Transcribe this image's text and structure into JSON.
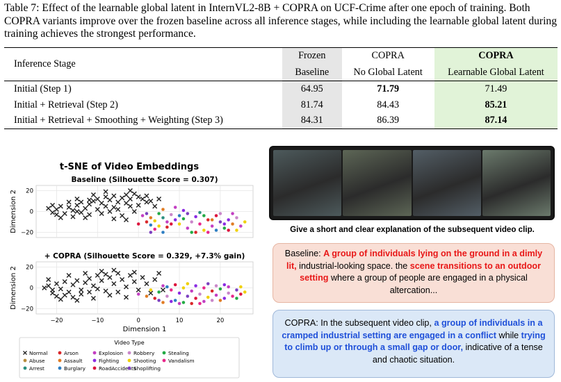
{
  "caption": "Table 7: Effect of the learnable global latent in InternVL2-8B + COPRA on UCF-Crime after one epoch of training. Both COPRA variants improve over the frozen baseline across all inference stages, while including the learnable global latent during training achieves the strongest performance.",
  "table": {
    "stage_header": "Inference Stage",
    "col1_line1": "Frozen",
    "col1_line2": "Baseline",
    "col2_line1": "COPRA",
    "col2_line2": "No Global Latent",
    "col3_line1": "COPRA",
    "col3_line2": "Learnable Global Latent",
    "rows": [
      {
        "stage": "Initial (Step 1)",
        "v1": "64.95",
        "v2": "71.79",
        "v3": "71.49",
        "best": 2
      },
      {
        "stage": "Initial + Retrieval (Step 2)",
        "v1": "81.74",
        "v2": "84.43",
        "v3": "85.21",
        "best": 3
      },
      {
        "stage": "Initial + Retrieval + Smoothing + Weighting (Step 3)",
        "v1": "84.31",
        "v2": "86.39",
        "v3": "87.14",
        "best": 3
      }
    ]
  },
  "chart_data": {
    "type": "scatter",
    "title": "t-SNE of Video Embeddings",
    "xlabel": "Dimension 1",
    "ylabel": "Dimension 2",
    "xlim": [
      -25,
      28
    ],
    "xticks": [
      -20,
      -10,
      0,
      10,
      20
    ],
    "yticks": [
      -20,
      0,
      20
    ],
    "grid": true,
    "legend_title": "Video Type",
    "legend_position": "bottom",
    "categories": [
      {
        "name": "Normal",
        "color": "#222222",
        "marker": "x"
      },
      {
        "name": "Abuse",
        "color": "#b68b3c"
      },
      {
        "name": "Arrest",
        "color": "#2a8f7f"
      },
      {
        "name": "Arson",
        "color": "#d9262a"
      },
      {
        "name": "Assault",
        "color": "#e07b22"
      },
      {
        "name": "Burglary",
        "color": "#2c7dc2"
      },
      {
        "name": "Explosion",
        "color": "#c23ec2"
      },
      {
        "name": "Fighting",
        "color": "#8a2be2"
      },
      {
        "name": "RoadAccidents",
        "color": "#dc143c"
      },
      {
        "name": "Robbery",
        "color": "#c986c9"
      },
      {
        "name": "Shooting",
        "color": "#f0d000"
      },
      {
        "name": "Shoplifting",
        "color": "#7b3fbf"
      },
      {
        "name": "Stealing",
        "color": "#22aa44"
      },
      {
        "name": "Vandalism",
        "color": "#e8268a"
      }
    ],
    "panels": [
      {
        "subtitle": "Baseline (Silhouette Score = 0.307)",
        "ylim": [
          -25,
          25
        ],
        "points": [
          [
            -20,
            2,
            0
          ],
          [
            -21,
            -1,
            0
          ],
          [
            -19,
            5,
            0
          ],
          [
            -18,
            -2,
            0
          ],
          [
            -22,
            3,
            0
          ],
          [
            -17,
            4,
            0
          ],
          [
            -20,
            -3,
            0
          ],
          [
            -16,
            1,
            0
          ],
          [
            -15,
            6,
            0
          ],
          [
            -14,
            -1,
            0
          ],
          [
            -13,
            3,
            0
          ],
          [
            -12,
            7,
            0
          ],
          [
            -11,
            10,
            0
          ],
          [
            -10,
            12,
            0
          ],
          [
            -9,
            8,
            0
          ],
          [
            -8,
            14,
            0
          ],
          [
            -7,
            11,
            0
          ],
          [
            -6,
            15,
            0
          ],
          [
            -5,
            9,
            0
          ],
          [
            -4,
            13,
            0
          ],
          [
            -3,
            16,
            0
          ],
          [
            -2,
            12,
            0
          ],
          [
            -1,
            17,
            0
          ],
          [
            0,
            14,
            0
          ],
          [
            -12,
            -3,
            0
          ],
          [
            -13,
            -6,
            0
          ],
          [
            -10,
            2,
            0
          ],
          [
            -9,
            -2,
            0
          ],
          [
            -8,
            5,
            0
          ],
          [
            -7,
            0,
            0
          ],
          [
            -6,
            4,
            0
          ],
          [
            -5,
            2,
            0
          ],
          [
            -17,
            9,
            0
          ],
          [
            -15,
            12,
            0
          ],
          [
            -14,
            9,
            0
          ],
          [
            -11,
            16,
            0
          ],
          [
            -3,
            8,
            0
          ],
          [
            1,
            12,
            0
          ],
          [
            2,
            15,
            0
          ],
          [
            3,
            10,
            0
          ],
          [
            -2,
            5,
            0
          ],
          [
            -4,
            -4,
            0
          ],
          [
            -3,
            -8,
            0
          ],
          [
            -1,
            0,
            0
          ],
          [
            4,
            5,
            0
          ],
          [
            5,
            12,
            0
          ],
          [
            -19,
            -6,
            0
          ],
          [
            -21,
            6,
            0
          ],
          [
            -16,
            -5,
            0
          ],
          [
            -6,
            -7,
            0
          ],
          [
            -15,
            0,
            0
          ],
          [
            -12,
            11,
            0
          ],
          [
            0,
            6,
            0
          ],
          [
            2,
            9,
            0
          ],
          [
            -8,
            19,
            0
          ],
          [
            -2,
            20,
            0
          ],
          [
            2,
            -10,
            3
          ],
          [
            3,
            -6,
            4
          ],
          [
            1,
            -4,
            6
          ],
          [
            4,
            -9,
            10
          ],
          [
            5,
            -2,
            12
          ],
          [
            0,
            -12,
            8
          ],
          [
            6,
            -6,
            2
          ],
          [
            3,
            -13,
            5
          ],
          [
            7,
            -10,
            6
          ],
          [
            5,
            -14,
            10
          ],
          [
            8,
            -3,
            9
          ],
          [
            2,
            -2,
            11
          ],
          [
            6,
            2,
            4
          ],
          [
            9,
            -8,
            7
          ],
          [
            4,
            -17,
            13
          ],
          [
            7,
            -15,
            3
          ],
          [
            10,
            -4,
            5
          ],
          [
            8,
            -12,
            8
          ],
          [
            10,
            -12,
            10
          ],
          [
            11,
            -7,
            12
          ],
          [
            12,
            -16,
            6
          ],
          [
            13,
            -10,
            9
          ],
          [
            12,
            -2,
            11
          ],
          [
            14,
            -5,
            7
          ],
          [
            15,
            -12,
            13
          ],
          [
            16,
            -18,
            10
          ],
          [
            17,
            -8,
            3
          ],
          [
            18,
            -14,
            6
          ],
          [
            19,
            -4,
            8
          ],
          [
            20,
            -10,
            11
          ],
          [
            21,
            -16,
            12
          ],
          [
            22,
            -8,
            7
          ],
          [
            23,
            -12,
            4
          ],
          [
            24,
            -6,
            9
          ],
          [
            25,
            -14,
            6
          ],
          [
            26,
            -10,
            10
          ],
          [
            17,
            -20,
            13
          ],
          [
            14,
            -20,
            3
          ],
          [
            19,
            -18,
            5
          ],
          [
            22,
            -18,
            8
          ],
          [
            9,
            4,
            6
          ],
          [
            11,
            1,
            7
          ],
          [
            13,
            -20,
            12
          ],
          [
            15,
            -1,
            2
          ],
          [
            20,
            -2,
            9
          ],
          [
            23,
            -2,
            6
          ],
          [
            24,
            -18,
            10
          ],
          [
            16,
            -4,
            12
          ],
          [
            18,
            -8,
            4
          ],
          [
            21,
            -12,
            7
          ],
          [
            6,
            -20,
            5
          ],
          [
            3,
            -20,
            11
          ]
        ]
      },
      {
        "subtitle": "+ COPRA (Silhouette Score = 0.329, +7.3% gain)",
        "ylim": [
          -25,
          25
        ],
        "points": [
          [
            -22,
            2,
            0
          ],
          [
            -21,
            -2,
            0
          ],
          [
            -20,
            4,
            0
          ],
          [
            -19,
            -1,
            0
          ],
          [
            -23,
            0,
            0
          ],
          [
            -18,
            6,
            0
          ],
          [
            -17,
            -4,
            0
          ],
          [
            -16,
            3,
            0
          ],
          [
            -15,
            7,
            0
          ],
          [
            -14,
            -2,
            0
          ],
          [
            -13,
            5,
            0
          ],
          [
            -12,
            9,
            0
          ],
          [
            -11,
            2,
            0
          ],
          [
            -10,
            12,
            0
          ],
          [
            -9,
            7,
            0
          ],
          [
            -8,
            -3,
            0
          ],
          [
            -7,
            10,
            0
          ],
          [
            -6,
            4,
            0
          ],
          [
            -5,
            14,
            0
          ],
          [
            -4,
            8,
            0
          ],
          [
            -3,
            1,
            0
          ],
          [
            -2,
            12,
            0
          ],
          [
            -1,
            6,
            0
          ],
          [
            0,
            -2,
            0
          ],
          [
            -18,
            -7,
            0
          ],
          [
            -16,
            -9,
            0
          ],
          [
            -14,
            -6,
            0
          ],
          [
            -12,
            -4,
            0
          ],
          [
            -20,
            -8,
            0
          ],
          [
            -10,
            -1,
            0
          ],
          [
            -7,
            -7,
            0
          ],
          [
            -5,
            -4,
            0
          ],
          [
            -3,
            -9,
            0
          ],
          [
            1,
            10,
            0
          ],
          [
            2,
            4,
            0
          ],
          [
            3,
            -5,
            0
          ],
          [
            4,
            8,
            0
          ],
          [
            -22,
            8,
            0
          ],
          [
            -17,
            12,
            0
          ],
          [
            -13,
            14,
            0
          ],
          [
            -9,
            16,
            0
          ],
          [
            -6,
            17,
            0
          ],
          [
            -1,
            15,
            0
          ],
          [
            5,
            14,
            0
          ],
          [
            6,
            -2,
            0
          ],
          [
            -11,
            -10,
            0
          ],
          [
            -15,
            -12,
            0
          ],
          [
            -19,
            -11,
            0
          ],
          [
            -21,
            -5,
            0
          ],
          [
            -8,
            13,
            0
          ],
          [
            0,
            -6,
            6
          ],
          [
            2,
            -8,
            4
          ],
          [
            3,
            -2,
            10
          ],
          [
            4,
            -10,
            3
          ],
          [
            5,
            -4,
            12
          ],
          [
            6,
            2,
            6
          ],
          [
            7,
            -8,
            9
          ],
          [
            8,
            -2,
            13
          ],
          [
            9,
            -12,
            5
          ],
          [
            10,
            -5,
            7
          ],
          [
            11,
            0,
            10
          ],
          [
            12,
            -8,
            11
          ],
          [
            13,
            -3,
            6
          ],
          [
            14,
            -10,
            8
          ],
          [
            15,
            -6,
            9
          ],
          [
            16,
            0,
            13
          ],
          [
            17,
            -9,
            10
          ],
          [
            18,
            -3,
            3
          ],
          [
            19,
            -7,
            6
          ],
          [
            20,
            -1,
            12
          ],
          [
            21,
            -10,
            7
          ],
          [
            22,
            -5,
            9
          ],
          [
            23,
            -8,
            13
          ],
          [
            24,
            -2,
            11
          ],
          [
            25,
            -6,
            8
          ],
          [
            26,
            -4,
            10
          ],
          [
            12,
            4,
            10
          ],
          [
            14,
            2,
            7
          ],
          [
            16,
            -13,
            6
          ],
          [
            18,
            -12,
            9
          ],
          [
            20,
            -12,
            4
          ],
          [
            11,
            -14,
            12
          ],
          [
            9,
            3,
            8
          ],
          [
            7,
            1,
            5
          ],
          [
            5,
            -12,
            11
          ],
          [
            22,
            1,
            6
          ],
          [
            24,
            -10,
            12
          ],
          [
            17,
            4,
            11
          ],
          [
            19,
            2,
            9
          ],
          [
            13,
            -15,
            3
          ],
          [
            15,
            -15,
            13
          ],
          [
            21,
            3,
            7
          ],
          [
            10,
            -15,
            6
          ],
          [
            25,
            1,
            10
          ],
          [
            8,
            -13,
            7
          ],
          [
            6,
            -14,
            4
          ]
        ]
      }
    ]
  },
  "video": {
    "prompt": "Give a short and clear explanation of the subsequent video clip.",
    "frame_colors": [
      "#4d5a5c",
      "#5d6656",
      "#535e66",
      "#6b7a6c"
    ]
  },
  "baseline": {
    "label": "Baseline: ",
    "hl1": "A group of individuals lying on the ground in a dimly lit,",
    "t1": " industrial-looking space. the ",
    "hl2": "scene transitions to an outdoor setting",
    "t2": " where a group of people are engaged in a physical altercation..."
  },
  "copra": {
    "label": "COPRA: In the subsequent video clip, ",
    "hl1": "a group of individuals in a cramped industrial setting are engaged in a conflict",
    "t1": " while ",
    "hl2": "trying to climb up or through a small gap or door,",
    "t2": " indicative of a tense and chaotic situation."
  }
}
